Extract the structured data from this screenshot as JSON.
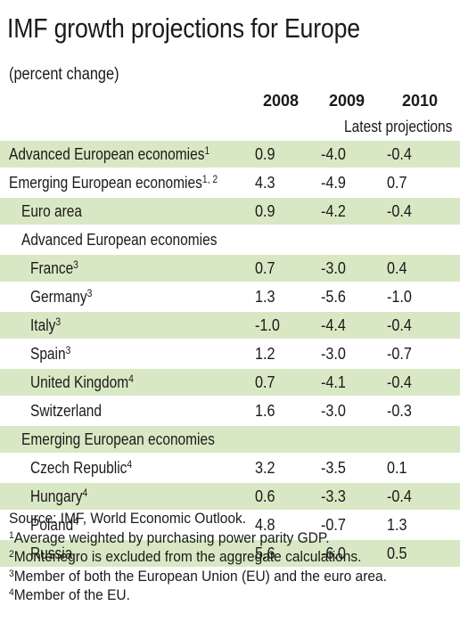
{
  "title": "IMF growth projections for Europe",
  "subtitle": "(percent change)",
  "chart_data": {
    "type": "table",
    "columns": [
      "2008",
      "2009",
      "2010"
    ],
    "column_group_label": "Latest projections",
    "rows": [
      {
        "label": "Advanced European economies",
        "sup": "1",
        "values": [
          "0.9",
          "-4.0",
          "-0.4"
        ],
        "indent": 0,
        "shaded": true
      },
      {
        "label": "Emerging European economies",
        "sup": "1, 2",
        "values": [
          "4.3",
          "-4.9",
          "0.7"
        ],
        "indent": 0,
        "shaded": false
      },
      {
        "label": "Euro area",
        "sup": "",
        "values": [
          "0.9",
          "-4.2",
          "-0.4"
        ],
        "indent": 1,
        "shaded": true
      },
      {
        "label": "Advanced European economies",
        "sup": "",
        "values": [
          "",
          "",
          ""
        ],
        "indent": 1,
        "shaded": false,
        "heading": true
      },
      {
        "label": "France",
        "sup": "3",
        "values": [
          "0.7",
          "-3.0",
          "0.4"
        ],
        "indent": 2,
        "shaded": true
      },
      {
        "label": "Germany",
        "sup": "3",
        "values": [
          "1.3",
          "-5.6",
          "-1.0"
        ],
        "indent": 2,
        "shaded": false
      },
      {
        "label": "Italy",
        "sup": "3",
        "values": [
          "-1.0",
          "-4.4",
          "-0.4"
        ],
        "indent": 2,
        "shaded": true
      },
      {
        "label": "Spain",
        "sup": "3",
        "values": [
          "1.2",
          "-3.0",
          "-0.7"
        ],
        "indent": 2,
        "shaded": false
      },
      {
        "label": "United Kingdom",
        "sup": "4",
        "values": [
          "0.7",
          "-4.1",
          "-0.4"
        ],
        "indent": 2,
        "shaded": true
      },
      {
        "label": "Switzerland",
        "sup": "",
        "values": [
          "1.6",
          "-3.0",
          "-0.3"
        ],
        "indent": 2,
        "shaded": false
      },
      {
        "label": "Emerging European economies",
        "sup": "",
        "values": [
          "",
          "",
          ""
        ],
        "indent": 1,
        "shaded": true,
        "heading": true
      },
      {
        "label": "Czech Republic",
        "sup": "4",
        "values": [
          "3.2",
          "-3.5",
          "0.1"
        ],
        "indent": 2,
        "shaded": false
      },
      {
        "label": "Hungary",
        "sup": "4",
        "values": [
          "0.6",
          "-3.3",
          "-0.4"
        ],
        "indent": 2,
        "shaded": true
      },
      {
        "label": "Poland",
        "sup": "4",
        "values": [
          "4.8",
          "-0.7",
          "1.3"
        ],
        "indent": 2,
        "shaded": false
      },
      {
        "label": "Russia",
        "sup": "",
        "values": [
          "5.6",
          "-6.0",
          "0.5"
        ],
        "indent": 2,
        "shaded": true
      }
    ]
  },
  "footnotes": [
    {
      "mark": "",
      "text": "Source: IMF, World Economic Outlook."
    },
    {
      "mark": "1",
      "text": "Average weighted by purchasing power parity GDP."
    },
    {
      "mark": "2",
      "text": "Montenegro is excluded from the aggregate calculations."
    },
    {
      "mark": "3",
      "text": "Member of both the European Union (EU) and the euro area."
    },
    {
      "mark": "4",
      "text": "Member of the EU."
    }
  ],
  "colors": {
    "shade": "#d9e8c4",
    "text": "#1a1a1a"
  }
}
